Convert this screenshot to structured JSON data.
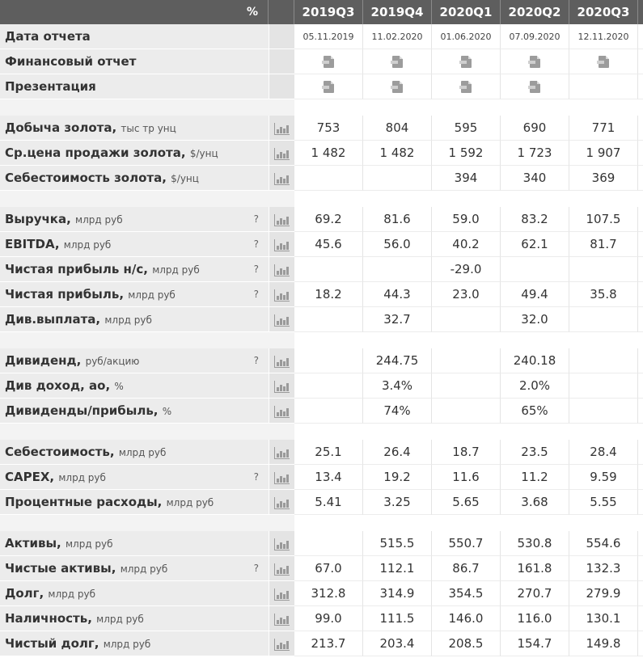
{
  "header": {
    "pct_label": "%",
    "periods": [
      "2019Q3",
      "2019Q4",
      "2020Q1",
      "2020Q2",
      "2020Q3"
    ]
  },
  "info_rows": [
    {
      "label": "Дата отчета",
      "type": "date",
      "values": [
        "05.11.2019",
        "11.02.2020",
        "01.06.2020",
        "07.09.2020",
        "12.11.2020"
      ]
    },
    {
      "label": "Финансовый отчет",
      "type": "doc",
      "values": [
        true,
        true,
        true,
        true,
        true
      ],
      "icon": "document-icon"
    },
    {
      "label": "Презентация",
      "type": "doc",
      "values": [
        true,
        true,
        true,
        true,
        false
      ],
      "icon": "document-icon"
    }
  ],
  "groups": [
    [
      {
        "label": "Добыча золота,",
        "unit": "тыс тр унц",
        "q": false,
        "values": [
          "753",
          "804",
          "595",
          "690",
          "771"
        ]
      },
      {
        "label": "Ср.цена продажи золота,",
        "unit": "$/унц",
        "q": false,
        "values": [
          "1 482",
          "1 482",
          "1 592",
          "1 723",
          "1 907"
        ]
      },
      {
        "label": "Себестоимость золота,",
        "unit": "$/унц",
        "q": false,
        "values": [
          "",
          "",
          "394",
          "340",
          "369"
        ]
      }
    ],
    [
      {
        "label": "Выручка,",
        "unit": "млрд руб",
        "q": true,
        "values": [
          "69.2",
          "81.6",
          "59.0",
          "83.2",
          "107.5"
        ]
      },
      {
        "label": "EBITDA,",
        "unit": "млрд руб",
        "q": true,
        "values": [
          "45.6",
          "56.0",
          "40.2",
          "62.1",
          "81.7"
        ]
      },
      {
        "label": "Чистая прибыль н/с,",
        "unit": "млрд руб",
        "q": true,
        "values": [
          "",
          "",
          "-29.0",
          "",
          ""
        ]
      },
      {
        "label": "Чистая прибыль,",
        "unit": "млрд руб",
        "q": true,
        "values": [
          "18.2",
          "44.3",
          "23.0",
          "49.4",
          "35.8"
        ]
      },
      {
        "label": "Див.выплата,",
        "unit": "млрд руб",
        "q": false,
        "values": [
          "",
          "32.7",
          "",
          "32.0",
          ""
        ]
      }
    ],
    [
      {
        "label": "Дивиденд,",
        "unit": "руб/акцию",
        "q": true,
        "values": [
          "",
          "244.75",
          "",
          "240.18",
          ""
        ]
      },
      {
        "label": "Див доход, ао,",
        "unit": "%",
        "q": false,
        "values": [
          "",
          "3.4%",
          "",
          "2.0%",
          ""
        ]
      },
      {
        "label": "Дивиденды/прибыль,",
        "unit": "%",
        "q": false,
        "values": [
          "",
          "74%",
          "",
          "65%",
          ""
        ]
      }
    ],
    [
      {
        "label": "Себестоимость,",
        "unit": "млрд руб",
        "q": false,
        "values": [
          "25.1",
          "26.4",
          "18.7",
          "23.5",
          "28.4"
        ]
      },
      {
        "label": "CAPEX,",
        "unit": "млрд руб",
        "q": true,
        "values": [
          "13.4",
          "19.2",
          "11.6",
          "11.2",
          "9.59"
        ]
      },
      {
        "label": "Процентные расходы,",
        "unit": "млрд руб",
        "q": false,
        "values": [
          "5.41",
          "3.25",
          "5.65",
          "3.68",
          "5.55"
        ]
      }
    ],
    [
      {
        "label": "Активы,",
        "unit": "млрд руб",
        "q": false,
        "values": [
          "",
          "515.5",
          "550.7",
          "530.8",
          "554.6"
        ]
      },
      {
        "label": "Чистые активы,",
        "unit": "млрд руб",
        "q": true,
        "values": [
          "67.0",
          "112.1",
          "86.7",
          "161.8",
          "132.3"
        ]
      },
      {
        "label": "Долг,",
        "unit": "млрд руб",
        "q": false,
        "values": [
          "312.8",
          "314.9",
          "354.5",
          "270.7",
          "279.9"
        ]
      },
      {
        "label": "Наличность,",
        "unit": "млрд руб",
        "q": false,
        "values": [
          "99.0",
          "111.5",
          "146.0",
          "116.0",
          "130.1"
        ]
      },
      {
        "label": "Чистый долг,",
        "unit": "млрд руб",
        "q": false,
        "values": [
          "213.7",
          "203.4",
          "208.5",
          "154.7",
          "149.8"
        ]
      }
    ]
  ],
  "help_mark": "?",
  "row_chart_icon": "bar-chart-icon"
}
